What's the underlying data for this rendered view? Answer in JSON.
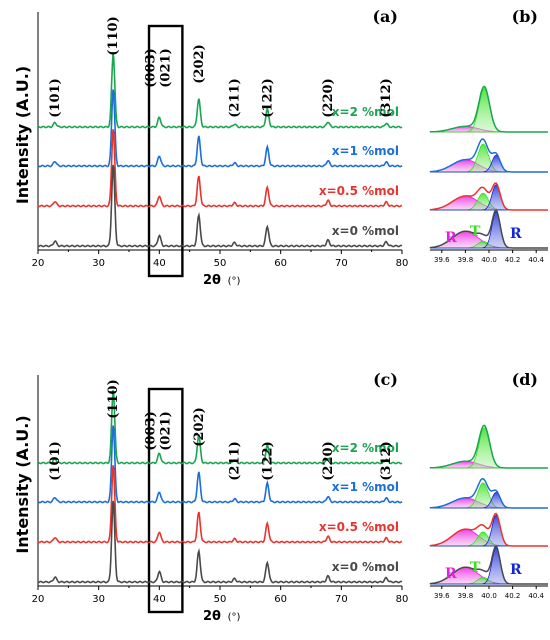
{
  "chart_data": [
    {
      "panel": "(a)",
      "type": "line",
      "ylabel": "Intensity (A.U.)",
      "xlabel": "2θ",
      "xunit": "(°)",
      "xlim": [
        20,
        80
      ],
      "xticks": [
        20,
        30,
        40,
        50,
        60,
        70,
        80
      ],
      "peaks": [
        {
          "label": "(101)",
          "x": 22.8,
          "rel": 0.06
        },
        {
          "label": "(110)",
          "x": 32.4,
          "rel": 1.0
        },
        {
          "label": "(003)\n(021)",
          "x": 40.0,
          "rel": 0.13
        },
        {
          "label": "(202)",
          "x": 46.5,
          "rel": 0.38
        },
        {
          "label": "(211)",
          "x": 52.4,
          "rel": 0.04
        },
        {
          "label": "(122)",
          "x": 57.8,
          "rel": 0.24
        },
        {
          "label": "(220)",
          "x": 67.8,
          "rel": 0.07
        },
        {
          "label": "(312)",
          "x": 77.4,
          "rel": 0.05
        }
      ],
      "series": [
        {
          "name": "x=2 %mol",
          "color": "#1aa551",
          "peak_scale": 0.95
        },
        {
          "name": "x=1 %mol",
          "color": "#1c6fd6",
          "peak_scale": 1.0
        },
        {
          "name": "x=0.5 %mol",
          "color": "#e8342f",
          "peak_scale": 1.0
        },
        {
          "name": "x=0 %mol",
          "color": "#4a4a4a",
          "peak_scale": 1.05
        }
      ],
      "highlight_box_x": [
        38.3,
        43.8
      ]
    },
    {
      "panel": "(b)",
      "type": "area",
      "xlim": [
        39.5,
        40.5
      ],
      "xticks": [
        "39.6",
        "39.8",
        "40.0",
        "40.2",
        "40.4"
      ],
      "phase_labels": [
        {
          "text": "R",
          "color": "#e91ee0"
        },
        {
          "text": "T",
          "color": "#36e01f"
        },
        {
          "text": "R",
          "color": "#1525d4"
        }
      ],
      "series": [
        {
          "name": "x=2 %mol",
          "color": "#1aa551",
          "R1": [
            39.8,
            0.1
          ],
          "T": [
            39.96,
            0.78
          ],
          "R2": [
            40.06,
            0.0
          ]
        },
        {
          "name": "x=1 %mol",
          "color": "#1c6fd6",
          "R1": [
            39.8,
            0.22
          ],
          "T": [
            39.95,
            0.5
          ],
          "R2": [
            40.06,
            0.3
          ]
        },
        {
          "name": "x=0.5 %mol",
          "color": "#e8342f",
          "R1": [
            39.8,
            0.25
          ],
          "T": [
            39.95,
            0.3
          ],
          "R2": [
            40.06,
            0.45
          ]
        },
        {
          "name": "x=0 %mol",
          "color": "#4a4a4a",
          "R1": [
            39.8,
            0.3
          ],
          "T": [
            39.95,
            0.12
          ],
          "R2": [
            40.06,
            0.65
          ]
        }
      ]
    },
    {
      "panel": "(c)",
      "type": "line",
      "ylabel": "Intensity (A.U.)",
      "xlabel": "2θ",
      "xunit": "(°)",
      "xlim": [
        20,
        80
      ],
      "xticks": [
        20,
        30,
        40,
        50,
        60,
        70,
        80
      ],
      "peaks": [
        {
          "label": "(101)",
          "x": 22.8,
          "rel": 0.06
        },
        {
          "label": "(110)",
          "x": 32.4,
          "rel": 1.0
        },
        {
          "label": "(003)\n(021)",
          "x": 40.0,
          "rel": 0.13
        },
        {
          "label": "(202)",
          "x": 46.5,
          "rel": 0.38
        },
        {
          "label": "(211)",
          "x": 52.4,
          "rel": 0.04
        },
        {
          "label": "(122)",
          "x": 57.8,
          "rel": 0.24
        },
        {
          "label": "(220)",
          "x": 67.8,
          "rel": 0.07
        },
        {
          "label": "(312)",
          "x": 77.4,
          "rel": 0.05
        }
      ],
      "series": [
        {
          "name": "x=2 %mol",
          "color": "#1aa551",
          "peak_scale": 0.95
        },
        {
          "name": "x=1 %mol",
          "color": "#1c6fd6",
          "peak_scale": 1.0
        },
        {
          "name": "x=0.5 %mol",
          "color": "#e8342f",
          "peak_scale": 1.0
        },
        {
          "name": "x=0 %mol",
          "color": "#4a4a4a",
          "peak_scale": 1.05
        }
      ],
      "highlight_box_x": [
        38.3,
        43.8
      ]
    },
    {
      "panel": "(d)",
      "type": "area",
      "xlim": [
        39.5,
        40.5
      ],
      "xticks": [
        "39.6",
        "39.8",
        "40.0",
        "40.2",
        "40.4"
      ],
      "phase_labels": [
        {
          "text": "R",
          "color": "#e91ee0"
        },
        {
          "text": "T",
          "color": "#36e01f"
        },
        {
          "text": "R",
          "color": "#1525d4"
        }
      ],
      "series": [
        {
          "name": "x=2 %mol",
          "color": "#1aa551",
          "R1": [
            39.8,
            0.12
          ],
          "T": [
            39.96,
            0.72
          ],
          "R2": [
            40.06,
            0.0
          ]
        },
        {
          "name": "x=1 %mol",
          "color": "#1c6fd6",
          "R1": [
            39.8,
            0.18
          ],
          "T": [
            39.95,
            0.45
          ],
          "R2": [
            40.06,
            0.28
          ]
        },
        {
          "name": "x=0.5 %mol",
          "color": "#e8342f",
          "R1": [
            39.8,
            0.3
          ],
          "T": [
            39.95,
            0.25
          ],
          "R2": [
            40.06,
            0.55
          ]
        },
        {
          "name": "x=0 %mol",
          "color": "#4a4a4a",
          "R1": [
            39.8,
            0.3
          ],
          "T": [
            39.95,
            0.12
          ],
          "R2": [
            40.06,
            0.65
          ]
        }
      ]
    }
  ]
}
